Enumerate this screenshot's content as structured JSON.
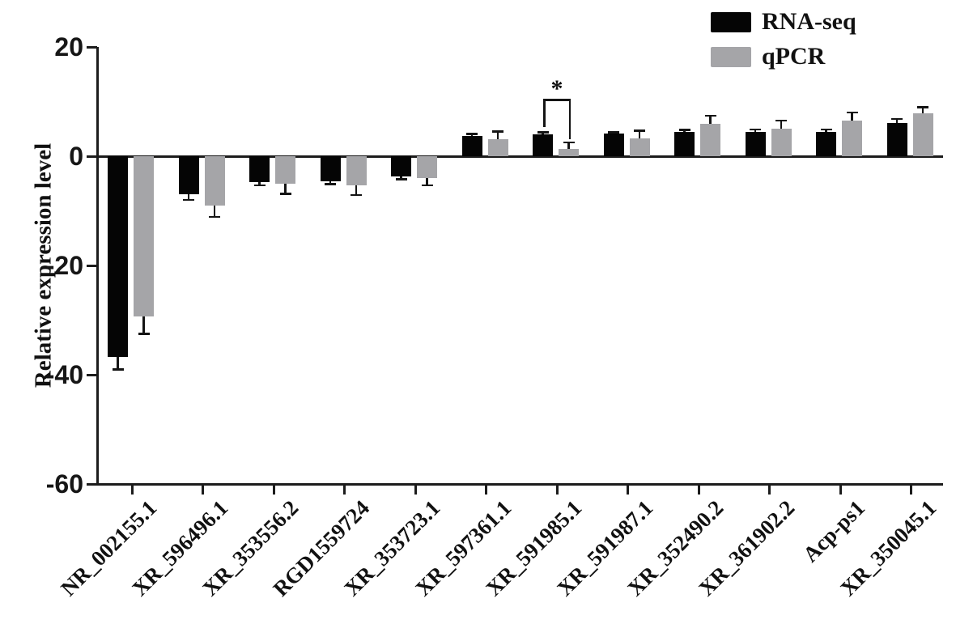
{
  "chart_data": {
    "type": "bar",
    "title": "",
    "xlabel": "",
    "ylabel": "Relative expression level",
    "categories": [
      "NR_002155.1",
      "XR_596496.1",
      "XR_353556.2",
      "RGD1559724",
      "XR_353723.1",
      "XR_597361.1",
      "XR_591985.1",
      "XR_591987.1",
      "XR_352490.2",
      "XR_361902.2",
      "Acp-ps1",
      "XR_350045.1"
    ],
    "series": [
      {
        "name": "RNA-seq",
        "color": "#050505",
        "values": [
          -36.8,
          -7.0,
          -4.7,
          -4.6,
          -3.7,
          3.7,
          4.0,
          4.1,
          4.4,
          4.4,
          4.4,
          6.1
        ],
        "errors": [
          2.2,
          1.0,
          0.6,
          0.5,
          0.5,
          0.4,
          0.4,
          0.3,
          0.4,
          0.5,
          0.5,
          0.7
        ]
      },
      {
        "name": "qPCR",
        "color": "#a5a5a8",
        "values": [
          -29.3,
          -9.0,
          -5.0,
          -5.3,
          -4.0,
          3.1,
          1.4,
          3.3,
          5.9,
          5.0,
          6.5,
          7.9
        ],
        "errors": [
          3.2,
          2.1,
          1.9,
          1.8,
          1.3,
          1.4,
          1.1,
          1.4,
          1.5,
          1.5,
          1.5,
          1.1
        ]
      }
    ],
    "yticks": [
      20,
      0,
      -20,
      -40,
      -60
    ],
    "ylim": [
      -60,
      20
    ],
    "grid": false,
    "legend_position": "top-right",
    "annotations": [
      {
        "type": "significance-bracket",
        "category": "XR_591985.1",
        "between": [
          "RNA-seq",
          "qPCR"
        ],
        "symbol": "*"
      }
    ]
  }
}
